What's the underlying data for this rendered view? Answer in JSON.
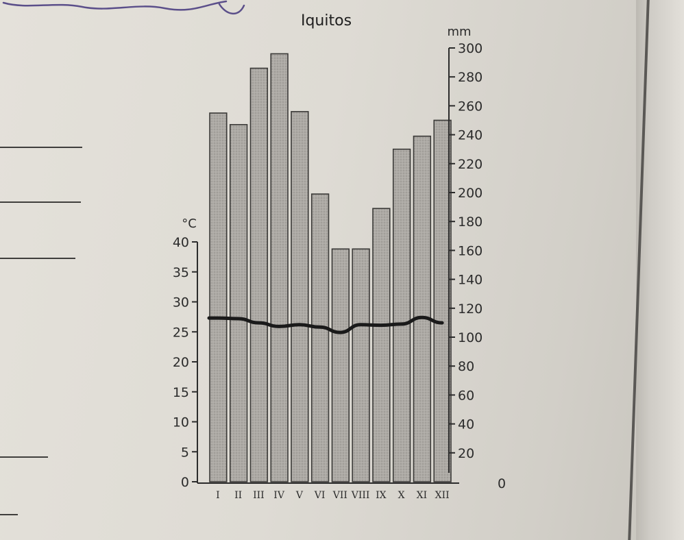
{
  "chart_data": {
    "type": "bar+line",
    "title": "Iquitos",
    "categories": [
      "I",
      "II",
      "III",
      "IV",
      "V",
      "VI",
      "VII",
      "VIII",
      "IX",
      "X",
      "XI",
      "XII"
    ],
    "series": [
      {
        "type": "bar",
        "axis": "right",
        "values": [
          255,
          247,
          286,
          296,
          256,
          199,
          161,
          161,
          189,
          230,
          239,
          250
        ]
      },
      {
        "type": "line",
        "axis": "left",
        "values": [
          27.3,
          27.2,
          26.5,
          25.9,
          26.2,
          25.8,
          24.9,
          26.2,
          26.1,
          26.3,
          27.4,
          26.5
        ]
      }
    ],
    "left_axis": {
      "unit": "°C",
      "range": [
        0,
        40
      ],
      "ticks": [
        "0",
        "5",
        "10",
        "15",
        "20",
        "25",
        "30",
        "35",
        "40"
      ]
    },
    "right_axis": {
      "unit": "mm",
      "range": [
        0,
        300
      ],
      "ticks": [
        "0",
        "20",
        "40",
        "60",
        "80",
        "100",
        "120",
        "140",
        "160",
        "180",
        "200",
        "220",
        "240",
        "260",
        "280",
        "300"
      ]
    },
    "grid": false,
    "legend": "none"
  }
}
